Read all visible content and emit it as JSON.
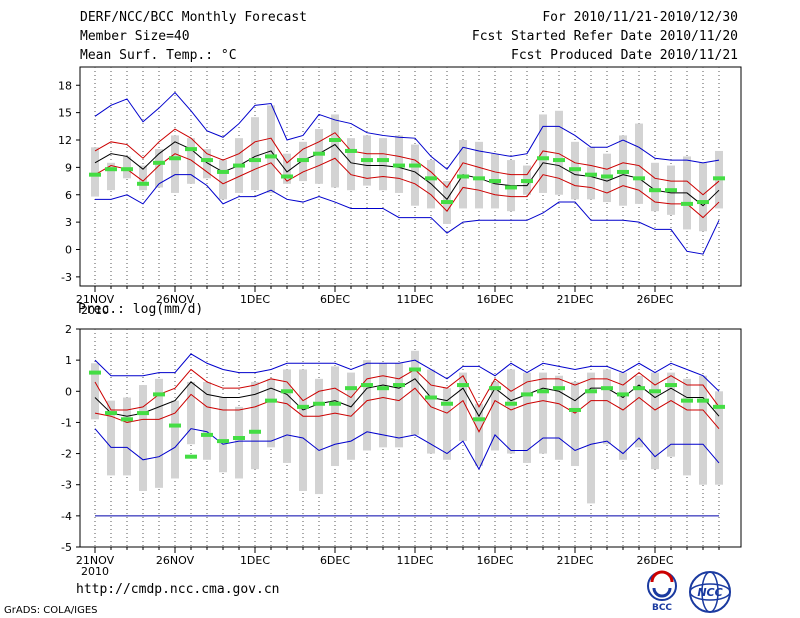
{
  "header": {
    "title": "DERF/NCC/BCC Monthly Forecast",
    "member_size": "Member Size=40",
    "variable": "Mean Surf. Temp.: °C",
    "period": "For 2010/11/21-2010/12/30",
    "start_date": "Fcst Started Refer Date 2010/11/20",
    "produced_date": "Fcst Produced Date 2010/11/21"
  },
  "colors": {
    "box": "#d3d3d3",
    "mean": "#000000",
    "sd_band": "#cc0000",
    "range": "#0000cc",
    "median": "#44dd44",
    "baseline": "#0000aa"
  },
  "chart_data": [
    {
      "type": "box",
      "title": "Mean Surf. Temp.: °C",
      "ylim": [
        -4,
        20
      ],
      "yticks": [
        -3,
        0,
        3,
        6,
        9,
        12,
        15,
        18
      ],
      "xlim": [
        0,
        40
      ],
      "xticks": [
        {
          "i": 0,
          "label": "21NOV"
        },
        {
          "i": 5,
          "label": "26NOV"
        },
        {
          "i": 10,
          "label": "1DEC"
        },
        {
          "i": 15,
          "label": "6DEC"
        },
        {
          "i": 20,
          "label": "11DEC"
        },
        {
          "i": 25,
          "label": "16DEC"
        },
        {
          "i": 30,
          "label": "21DEC"
        },
        {
          "i": 35,
          "label": "26DEC"
        }
      ],
      "year_label": "2010",
      "series": {
        "max": [
          14.6,
          15.8,
          16.5,
          14.0,
          15.5,
          17.2,
          15.2,
          13.0,
          12.3,
          13.8,
          15.8,
          16.0,
          12.0,
          12.5,
          14.8,
          14.2,
          13.8,
          12.8,
          12.5,
          12.3,
          12.2,
          10.2,
          8.8,
          11.2,
          10.8,
          10.5,
          10.2,
          10.5,
          13.5,
          13.5,
          12.5,
          11.2,
          11.2,
          12.0,
          11.2,
          10.0,
          9.8,
          9.8,
          9.5,
          9.8
        ],
        "upper": [
          10.8,
          11.8,
          11.5,
          10.0,
          11.8,
          13.2,
          12.2,
          10.5,
          9.8,
          10.5,
          11.8,
          12.2,
          9.5,
          11.0,
          11.8,
          12.8,
          10.8,
          10.5,
          10.5,
          10.2,
          9.8,
          8.5,
          6.8,
          9.5,
          9.0,
          8.5,
          8.2,
          8.2,
          10.8,
          10.5,
          9.5,
          9.2,
          8.8,
          9.5,
          9.2,
          7.8,
          7.5,
          7.5,
          6.0,
          7.5
        ],
        "mean": [
          9.5,
          10.5,
          10.2,
          8.8,
          10.5,
          11.8,
          11.0,
          9.5,
          8.5,
          9.2,
          10.2,
          10.8,
          8.5,
          9.8,
          10.5,
          11.5,
          9.5,
          9.2,
          9.2,
          9.0,
          8.5,
          7.2,
          5.5,
          8.2,
          7.8,
          7.2,
          7.0,
          7.0,
          9.5,
          9.2,
          8.2,
          8.0,
          7.5,
          8.2,
          7.8,
          6.5,
          6.2,
          6.2,
          4.8,
          6.5
        ],
        "lower": [
          8.2,
          9.2,
          8.8,
          7.5,
          9.2,
          10.5,
          9.8,
          8.5,
          7.2,
          8.0,
          8.8,
          9.5,
          7.5,
          8.5,
          9.2,
          10.0,
          8.2,
          7.8,
          8.0,
          7.8,
          7.2,
          6.0,
          4.2,
          6.8,
          6.5,
          6.0,
          5.8,
          5.8,
          8.2,
          7.8,
          7.0,
          6.8,
          6.2,
          7.0,
          6.5,
          5.2,
          5.0,
          5.0,
          3.5,
          5.2
        ],
        "min": [
          5.5,
          5.5,
          6.0,
          5.0,
          7.2,
          8.2,
          8.2,
          7.0,
          5.0,
          5.8,
          5.8,
          6.5,
          5.5,
          5.2,
          5.8,
          5.2,
          4.5,
          4.5,
          4.5,
          3.5,
          3.5,
          3.5,
          1.8,
          3.0,
          3.2,
          3.2,
          3.2,
          3.2,
          4.0,
          5.2,
          5.2,
          3.2,
          3.2,
          3.2,
          3.0,
          2.2,
          2.2,
          -0.2,
          -0.5,
          3.2
        ],
        "box_low": [
          5.8,
          6.5,
          7.8,
          6.5,
          6.8,
          6.2,
          7.2,
          7.8,
          5.5,
          6.2,
          6.5,
          6.2,
          7.2,
          7.5,
          7.2,
          6.8,
          6.5,
          7.0,
          6.5,
          6.2,
          4.8,
          4.5,
          2.8,
          4.5,
          4.5,
          4.5,
          4.2,
          6.0,
          6.2,
          6.0,
          5.5,
          5.5,
          5.2,
          4.8,
          5.0,
          4.2,
          3.8,
          2.2,
          2.0,
          4.5
        ],
        "box_high": [
          11.2,
          9.5,
          10.2,
          9.2,
          11.0,
          12.5,
          12.2,
          11.0,
          9.8,
          12.2,
          14.5,
          15.8,
          10.5,
          11.8,
          13.2,
          14.8,
          12.2,
          12.5,
          12.2,
          12.5,
          11.5,
          9.8,
          7.5,
          12.0,
          11.8,
          10.5,
          9.8,
          9.2,
          14.8,
          15.2,
          11.8,
          11.2,
          10.5,
          12.5,
          13.8,
          9.5,
          9.2,
          10.2,
          9.5,
          10.8
        ],
        "median": [
          8.2,
          8.8,
          8.8,
          7.2,
          9.5,
          10.0,
          11.0,
          9.8,
          8.5,
          9.2,
          9.8,
          10.2,
          8.0,
          9.8,
          10.5,
          12.0,
          10.8,
          9.8,
          9.8,
          9.2,
          9.2,
          7.8,
          5.2,
          8.0,
          7.8,
          7.5,
          6.8,
          7.5,
          10.0,
          9.8,
          8.8,
          8.2,
          8.0,
          8.5,
          7.8,
          6.5,
          6.5,
          5.0,
          5.2,
          7.8
        ]
      }
    },
    {
      "type": "box",
      "title": "Prec.: log(mm/d)",
      "ylim": [
        -5,
        2
      ],
      "yticks": [
        -5,
        -4,
        -3,
        -2,
        -1,
        0,
        1,
        2
      ],
      "xlim": [
        0,
        40
      ],
      "xticks": [
        {
          "i": 0,
          "label": "21NOV"
        },
        {
          "i": 5,
          "label": "26NOV"
        },
        {
          "i": 10,
          "label": "1DEC"
        },
        {
          "i": 15,
          "label": "6DEC"
        },
        {
          "i": 20,
          "label": "11DEC"
        },
        {
          "i": 25,
          "label": "16DEC"
        },
        {
          "i": 30,
          "label": "21DEC"
        },
        {
          "i": 35,
          "label": "26DEC"
        }
      ],
      "year_label": "2010",
      "baseline": -4,
      "series": {
        "max": [
          1.0,
          0.5,
          0.5,
          0.5,
          0.6,
          0.6,
          1.2,
          0.9,
          0.7,
          0.6,
          0.6,
          0.7,
          0.9,
          0.9,
          0.9,
          0.9,
          0.7,
          0.9,
          0.9,
          0.9,
          1.0,
          0.7,
          0.4,
          0.8,
          0.8,
          0.5,
          0.9,
          0.6,
          0.9,
          0.8,
          0.7,
          0.8,
          0.8,
          0.6,
          0.9,
          0.6,
          0.9,
          0.7,
          0.5,
          0.0
        ],
        "upper": [
          0.3,
          -0.6,
          -0.6,
          -0.5,
          -0.1,
          0.1,
          0.7,
          0.3,
          0.1,
          0.1,
          0.2,
          0.4,
          0.3,
          -0.3,
          0.0,
          0.1,
          -0.2,
          0.4,
          0.5,
          0.4,
          0.7,
          0.2,
          0.1,
          0.5,
          -0.5,
          0.4,
          0.0,
          0.3,
          0.4,
          0.4,
          0.2,
          0.4,
          0.4,
          0.2,
          0.6,
          0.2,
          0.5,
          0.2,
          0.2,
          -0.5
        ],
        "mean": [
          -0.2,
          -0.7,
          -0.8,
          -0.7,
          -0.5,
          -0.3,
          0.3,
          -0.1,
          -0.2,
          -0.2,
          -0.1,
          0.1,
          -0.1,
          -0.6,
          -0.4,
          -0.3,
          -0.5,
          0.1,
          0.2,
          0.1,
          0.4,
          -0.2,
          -0.3,
          0.1,
          -0.8,
          0.1,
          -0.3,
          -0.1,
          0.1,
          0.0,
          -0.3,
          0.1,
          0.1,
          -0.2,
          0.2,
          -0.2,
          0.1,
          -0.2,
          -0.2,
          -0.8
        ],
        "lower": [
          -0.7,
          -0.8,
          -1.0,
          -0.9,
          -0.9,
          -0.7,
          -0.1,
          -0.5,
          -0.6,
          -0.6,
          -0.5,
          -0.3,
          -0.4,
          -0.8,
          -0.8,
          -0.7,
          -0.8,
          -0.3,
          -0.2,
          -0.3,
          0.1,
          -0.5,
          -0.7,
          -0.3,
          -1.3,
          -0.3,
          -0.6,
          -0.4,
          -0.3,
          -0.4,
          -0.7,
          -0.3,
          -0.3,
          -0.6,
          -0.2,
          -0.6,
          -0.3,
          -0.6,
          -0.6,
          -1.2
        ],
        "min": [
          -1.2,
          -1.8,
          -1.8,
          -2.2,
          -2.1,
          -1.8,
          -1.2,
          -1.3,
          -1.7,
          -1.6,
          -1.6,
          -1.6,
          -1.4,
          -1.5,
          -1.9,
          -1.7,
          -1.6,
          -1.3,
          -1.4,
          -1.5,
          -1.4,
          -1.7,
          -2.0,
          -1.6,
          -2.5,
          -1.4,
          -1.9,
          -1.9,
          -1.5,
          -1.5,
          -1.9,
          -1.7,
          -1.6,
          -2.0,
          -1.5,
          -2.1,
          -1.7,
          -1.7,
          -1.7,
          -2.3
        ],
        "box_low": [
          -0.9,
          -2.7,
          -2.7,
          -3.2,
          -3.1,
          -2.8,
          -1.7,
          -2.2,
          -2.6,
          -2.8,
          -2.5,
          -1.8,
          -2.3,
          -3.2,
          -3.3,
          -2.4,
          -2.2,
          -1.9,
          -1.8,
          -1.8,
          -1.4,
          -2.0,
          -2.2,
          -1.6,
          -2.4,
          -1.9,
          -2.0,
          -2.3,
          -2.0,
          -2.2,
          -2.4,
          -3.6,
          -1.7,
          -2.2,
          -1.8,
          -2.5,
          -2.1,
          -2.7,
          -3.0,
          -3.0
        ],
        "box_high": [
          0.9,
          -0.3,
          -0.2,
          0.2,
          0.4,
          -0.3,
          0.3,
          0.3,
          -0.2,
          -0.5,
          0.3,
          0.4,
          0.7,
          0.7,
          0.4,
          0.8,
          0.6,
          1.0,
          0.9,
          0.9,
          1.3,
          0.7,
          0.1,
          0.6,
          -0.4,
          0.3,
          0.7,
          0.6,
          0.6,
          0.5,
          0.3,
          0.6,
          0.7,
          0.6,
          0.5,
          0.6,
          0.6,
          0.4,
          0.5,
          0.0
        ],
        "median": [
          0.6,
          -0.7,
          -0.9,
          -0.7,
          -0.1,
          -1.1,
          -2.1,
          -1.4,
          -1.6,
          -1.5,
          -1.3,
          -0.3,
          0.0,
          -0.5,
          -0.4,
          -0.4,
          0.1,
          0.2,
          0.1,
          0.2,
          0.7,
          -0.2,
          -0.4,
          0.2,
          -0.9,
          0.1,
          -0.4,
          -0.1,
          0.0,
          0.1,
          -0.6,
          0.0,
          0.1,
          -0.1,
          0.1,
          0.0,
          0.2,
          -0.3,
          -0.3,
          -0.5
        ]
      }
    }
  ],
  "footer": {
    "url": "http://cmdp.ncc.cma.gov.cn",
    "credit": "GrADS: COLA/IGES",
    "logo_bcc_text": "BCC",
    "logo_ncc_text": "NCC"
  }
}
